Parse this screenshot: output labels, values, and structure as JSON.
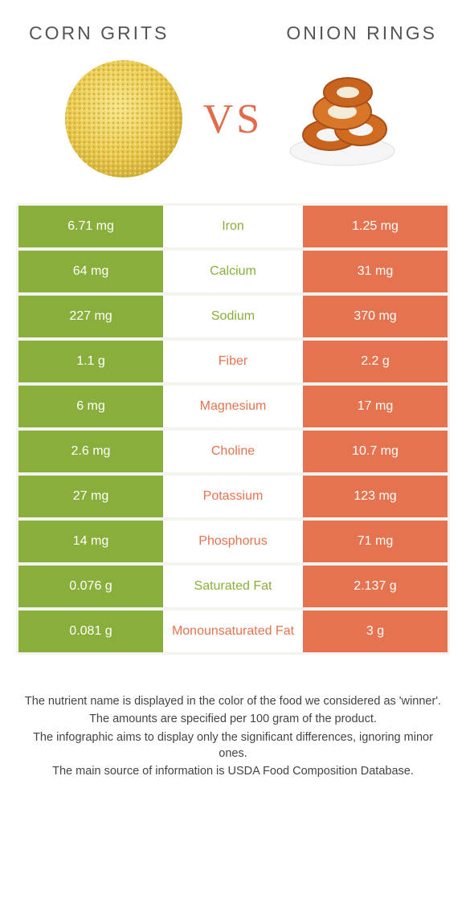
{
  "left_food": {
    "name": "CORN GRITS",
    "color": "#8aae3b"
  },
  "right_food": {
    "name": "ONION RINGS",
    "color": "#e5734f"
  },
  "vs_label": "VS",
  "mid_bg": "#ffffff",
  "border_color": "#f3f3ef",
  "rows": [
    {
      "left": "6.71 mg",
      "name": "Iron",
      "right": "1.25 mg",
      "winner": "left"
    },
    {
      "left": "64 mg",
      "name": "Calcium",
      "right": "31 mg",
      "winner": "left"
    },
    {
      "left": "227 mg",
      "name": "Sodium",
      "right": "370 mg",
      "winner": "left"
    },
    {
      "left": "1.1 g",
      "name": "Fiber",
      "right": "2.2 g",
      "winner": "right"
    },
    {
      "left": "6 mg",
      "name": "Magnesium",
      "right": "17 mg",
      "winner": "right"
    },
    {
      "left": "2.6 mg",
      "name": "Choline",
      "right": "10.7 mg",
      "winner": "right"
    },
    {
      "left": "27 mg",
      "name": "Potassium",
      "right": "123 mg",
      "winner": "right"
    },
    {
      "left": "14 mg",
      "name": "Phosphorus",
      "right": "71 mg",
      "winner": "right"
    },
    {
      "left": "0.076 g",
      "name": "Saturated Fat",
      "right": "2.137 g",
      "winner": "left"
    },
    {
      "left": "0.081 g",
      "name": "Monounsaturated Fat",
      "right": "3 g",
      "winner": "right"
    }
  ],
  "footnotes": [
    "The nutrient name is displayed in the color of the food we considered as 'winner'.",
    "The amounts are specified per 100 gram of the product.",
    "The infographic aims to display only the significant differences, ignoring minor ones.",
    "The main source of information is USDA Food Composition Database."
  ]
}
